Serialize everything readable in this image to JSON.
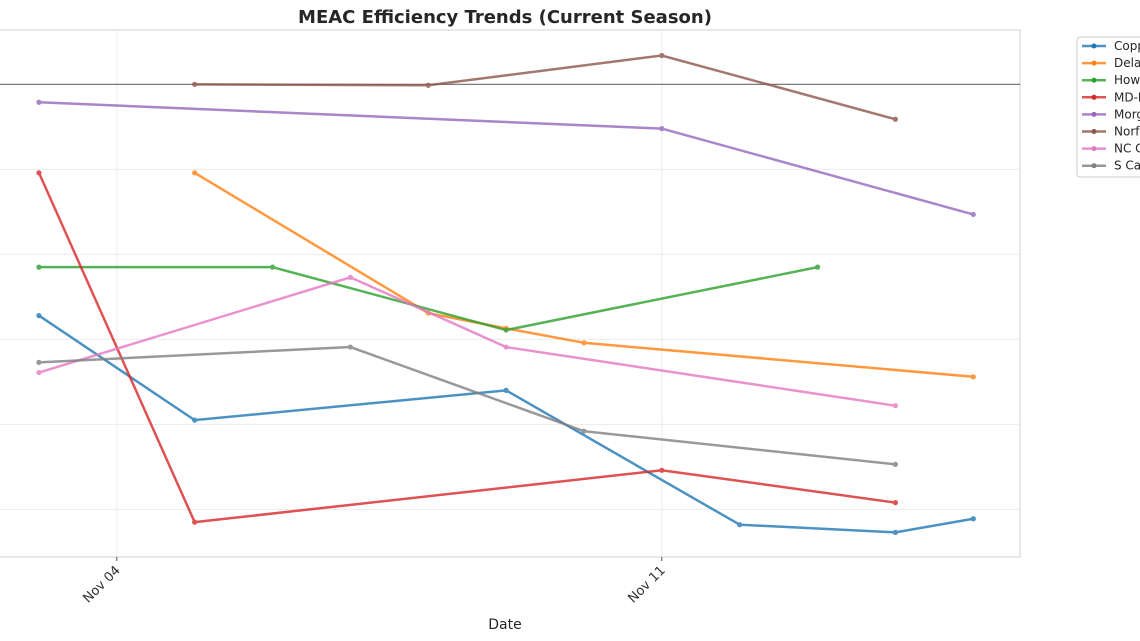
{
  "chart_data": {
    "type": "line",
    "title": "MEAC Efficiency Trends (Current Season)",
    "xlabel": "Date",
    "ylabel": "",
    "x_ticks": [
      "Nov 04",
      "Nov 11"
    ],
    "xlim": [
      2.5,
      15.6
    ],
    "ylim": [
      -0.56,
      5.64
    ],
    "y_gridlines": [
      0,
      1,
      2,
      3,
      4,
      5
    ],
    "reference_line_y": 5.0,
    "grid": true,
    "legend_position": "outside-right",
    "series": [
      {
        "name": "Copp",
        "color": "#1f77b4",
        "x": [
          "Nov 03",
          "Nov 05",
          "Nov 09",
          "Nov 12",
          "Nov 14",
          "Nov 15"
        ],
        "y": [
          2.28,
          1.05,
          1.4,
          -0.18,
          -0.27,
          -0.11
        ]
      },
      {
        "name": "Dela",
        "color": "#ff7f0e",
        "x": [
          "Nov 05",
          "Nov 08",
          "Nov 09",
          "Nov 10",
          "Nov 15"
        ],
        "y": [
          3.96,
          2.31,
          2.13,
          1.96,
          1.56
        ]
      },
      {
        "name": "How",
        "color": "#2ca02c",
        "x": [
          "Nov 03",
          "Nov 06",
          "Nov 09",
          "Nov 13"
        ],
        "y": [
          2.85,
          2.85,
          2.11,
          2.85
        ]
      },
      {
        "name": "MD-E",
        "color": "#d62728",
        "x": [
          "Nov 03",
          "Nov 05",
          "Nov 11",
          "Nov 14"
        ],
        "y": [
          3.96,
          -0.15,
          0.46,
          0.08
        ]
      },
      {
        "name": "Morg",
        "color": "#9467bd",
        "x": [
          "Nov 03",
          "Nov 11",
          "Nov 15"
        ],
        "y": [
          4.79,
          4.48,
          3.47
        ]
      },
      {
        "name": "Norf",
        "color": "#8c564b",
        "x": [
          "Nov 05",
          "Nov 08",
          "Nov 11",
          "Nov 14"
        ],
        "y": [
          5.0,
          4.99,
          5.34,
          4.59
        ]
      },
      {
        "name": "NC C",
        "color": "#e377c2",
        "x": [
          "Nov 03",
          "Nov 07",
          "Nov 09",
          "Nov 14"
        ],
        "y": [
          1.61,
          2.73,
          1.91,
          1.22
        ]
      },
      {
        "name": "S Ca",
        "color": "#7f7f7f",
        "x": [
          "Nov 03",
          "Nov 07",
          "Nov 10",
          "Nov 14"
        ],
        "y": [
          1.73,
          1.91,
          0.92,
          0.53
        ]
      }
    ]
  }
}
